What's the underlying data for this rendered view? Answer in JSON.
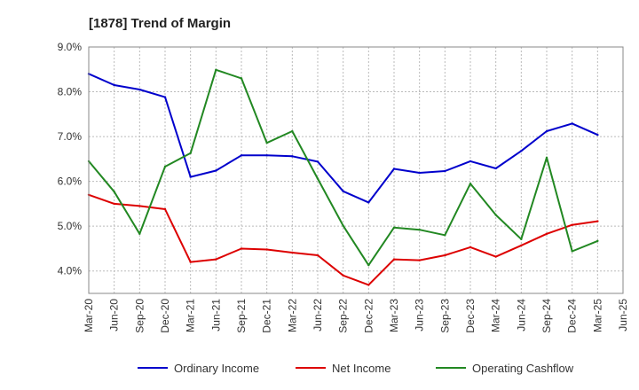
{
  "chart_data": {
    "type": "line",
    "title": "[1878]  Trend of Margin",
    "xlabel": "",
    "ylabel": "",
    "x": [
      "Mar-20",
      "Jun-20",
      "Sep-20",
      "Dec-20",
      "Mar-21",
      "Jun-21",
      "Sep-21",
      "Dec-21",
      "Mar-22",
      "Jun-22",
      "Sep-22",
      "Dec-22",
      "Mar-23",
      "Jun-23",
      "Sep-23",
      "Dec-23",
      "Mar-24",
      "Jun-24",
      "Sep-24",
      "Dec-24",
      "Mar-25",
      "Jun-25"
    ],
    "ylim": [
      3.5,
      9.0
    ],
    "yticks": [
      4.0,
      5.0,
      6.0,
      7.0,
      8.0,
      9.0
    ],
    "ytick_labels": [
      "4.0%",
      "5.0%",
      "6.0%",
      "7.0%",
      "8.0%",
      "9.0%"
    ],
    "grid": true,
    "legend_position": "bottom",
    "series": [
      {
        "name": "Ordinary Income",
        "color": "#0000cc",
        "values": [
          8.4,
          8.15,
          8.05,
          7.88,
          6.1,
          6.24,
          6.58,
          6.58,
          6.56,
          6.44,
          5.78,
          5.53,
          6.28,
          6.19,
          6.23,
          6.45,
          6.29,
          6.68,
          7.12,
          7.29,
          7.04,
          null
        ]
      },
      {
        "name": "Net Income",
        "color": "#dd0000",
        "values": [
          5.7,
          5.5,
          5.45,
          5.38,
          4.2,
          4.26,
          4.5,
          4.48,
          4.41,
          4.35,
          3.9,
          3.69,
          4.26,
          4.24,
          4.35,
          4.53,
          4.32,
          4.57,
          4.83,
          5.03,
          5.11,
          null
        ]
      },
      {
        "name": "Operating Cashflow",
        "color": "#228822",
        "values": [
          6.45,
          5.77,
          4.83,
          6.33,
          6.63,
          8.49,
          8.3,
          6.86,
          7.12,
          6.06,
          5.01,
          4.13,
          4.97,
          4.92,
          4.8,
          5.95,
          5.25,
          4.71,
          6.53,
          4.44,
          4.67,
          null
        ]
      }
    ]
  }
}
